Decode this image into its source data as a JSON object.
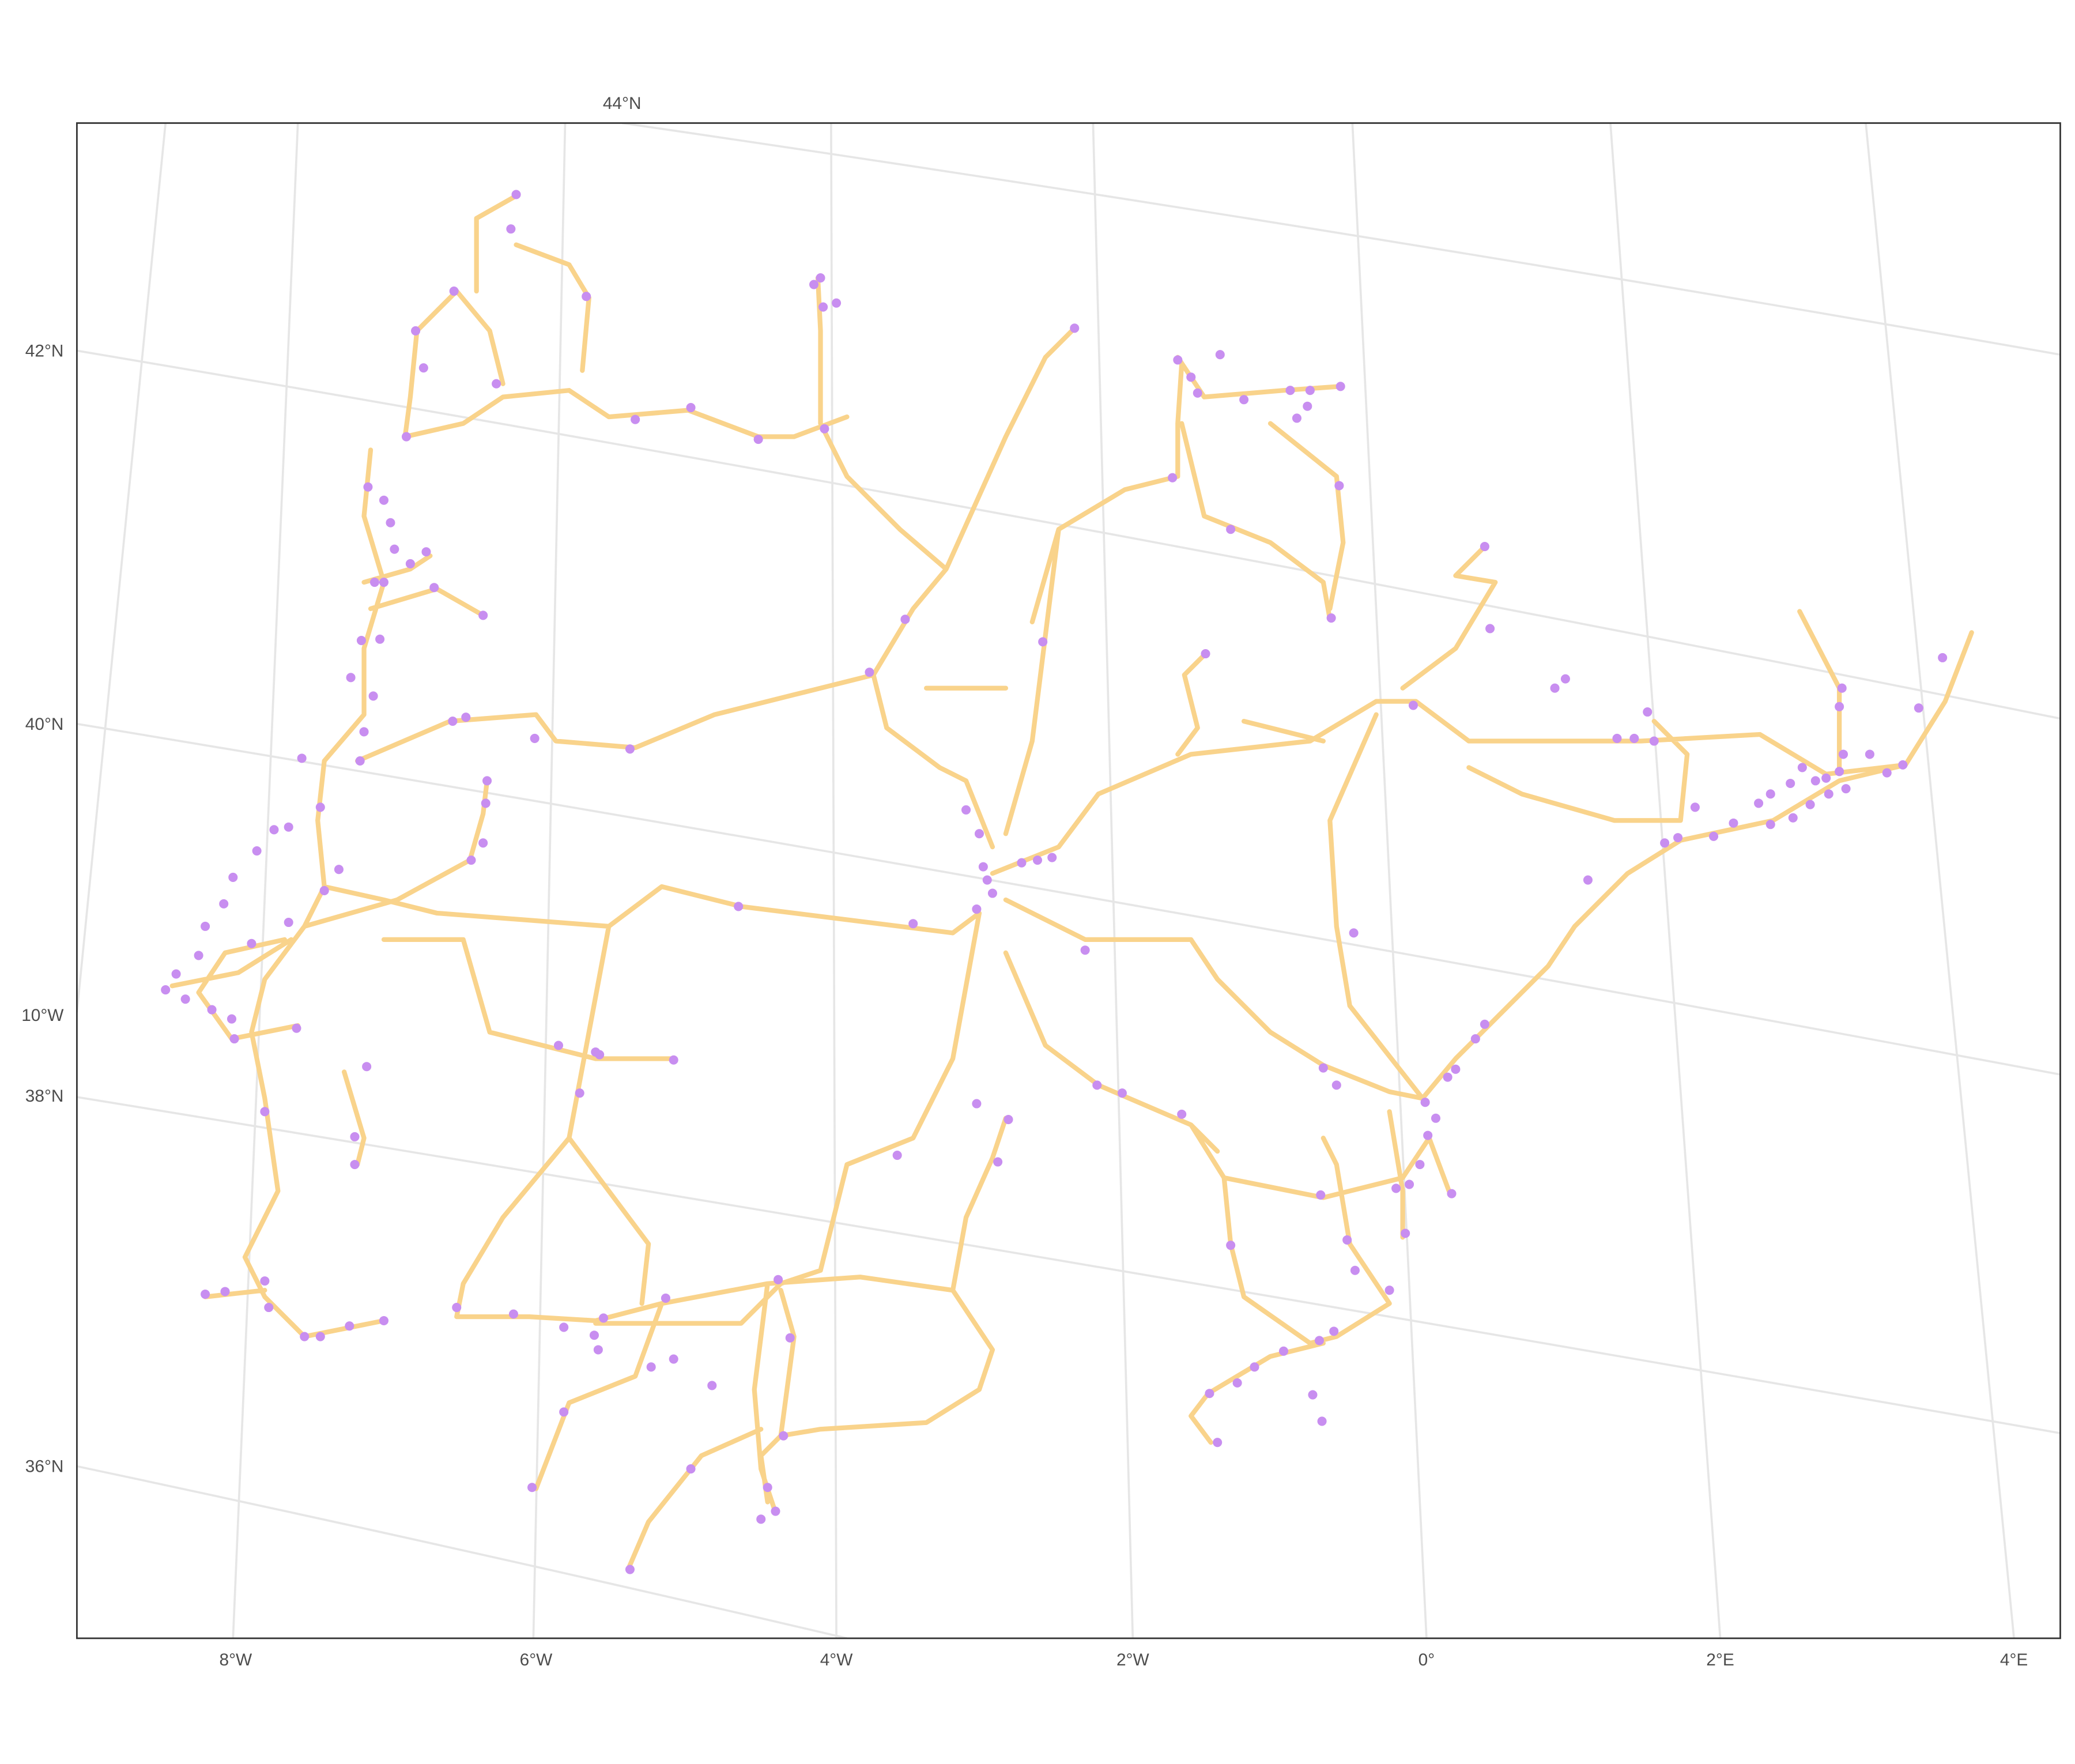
{
  "graticule": {
    "latitude_labels": [
      "44°N",
      "42°N",
      "40°N",
      "38°N",
      "36°N"
    ],
    "longitude_labels": [
      "10°W",
      "8°W",
      "6°W",
      "4°W",
      "2°W",
      "0°",
      "2°E",
      "4°E"
    ]
  }
}
